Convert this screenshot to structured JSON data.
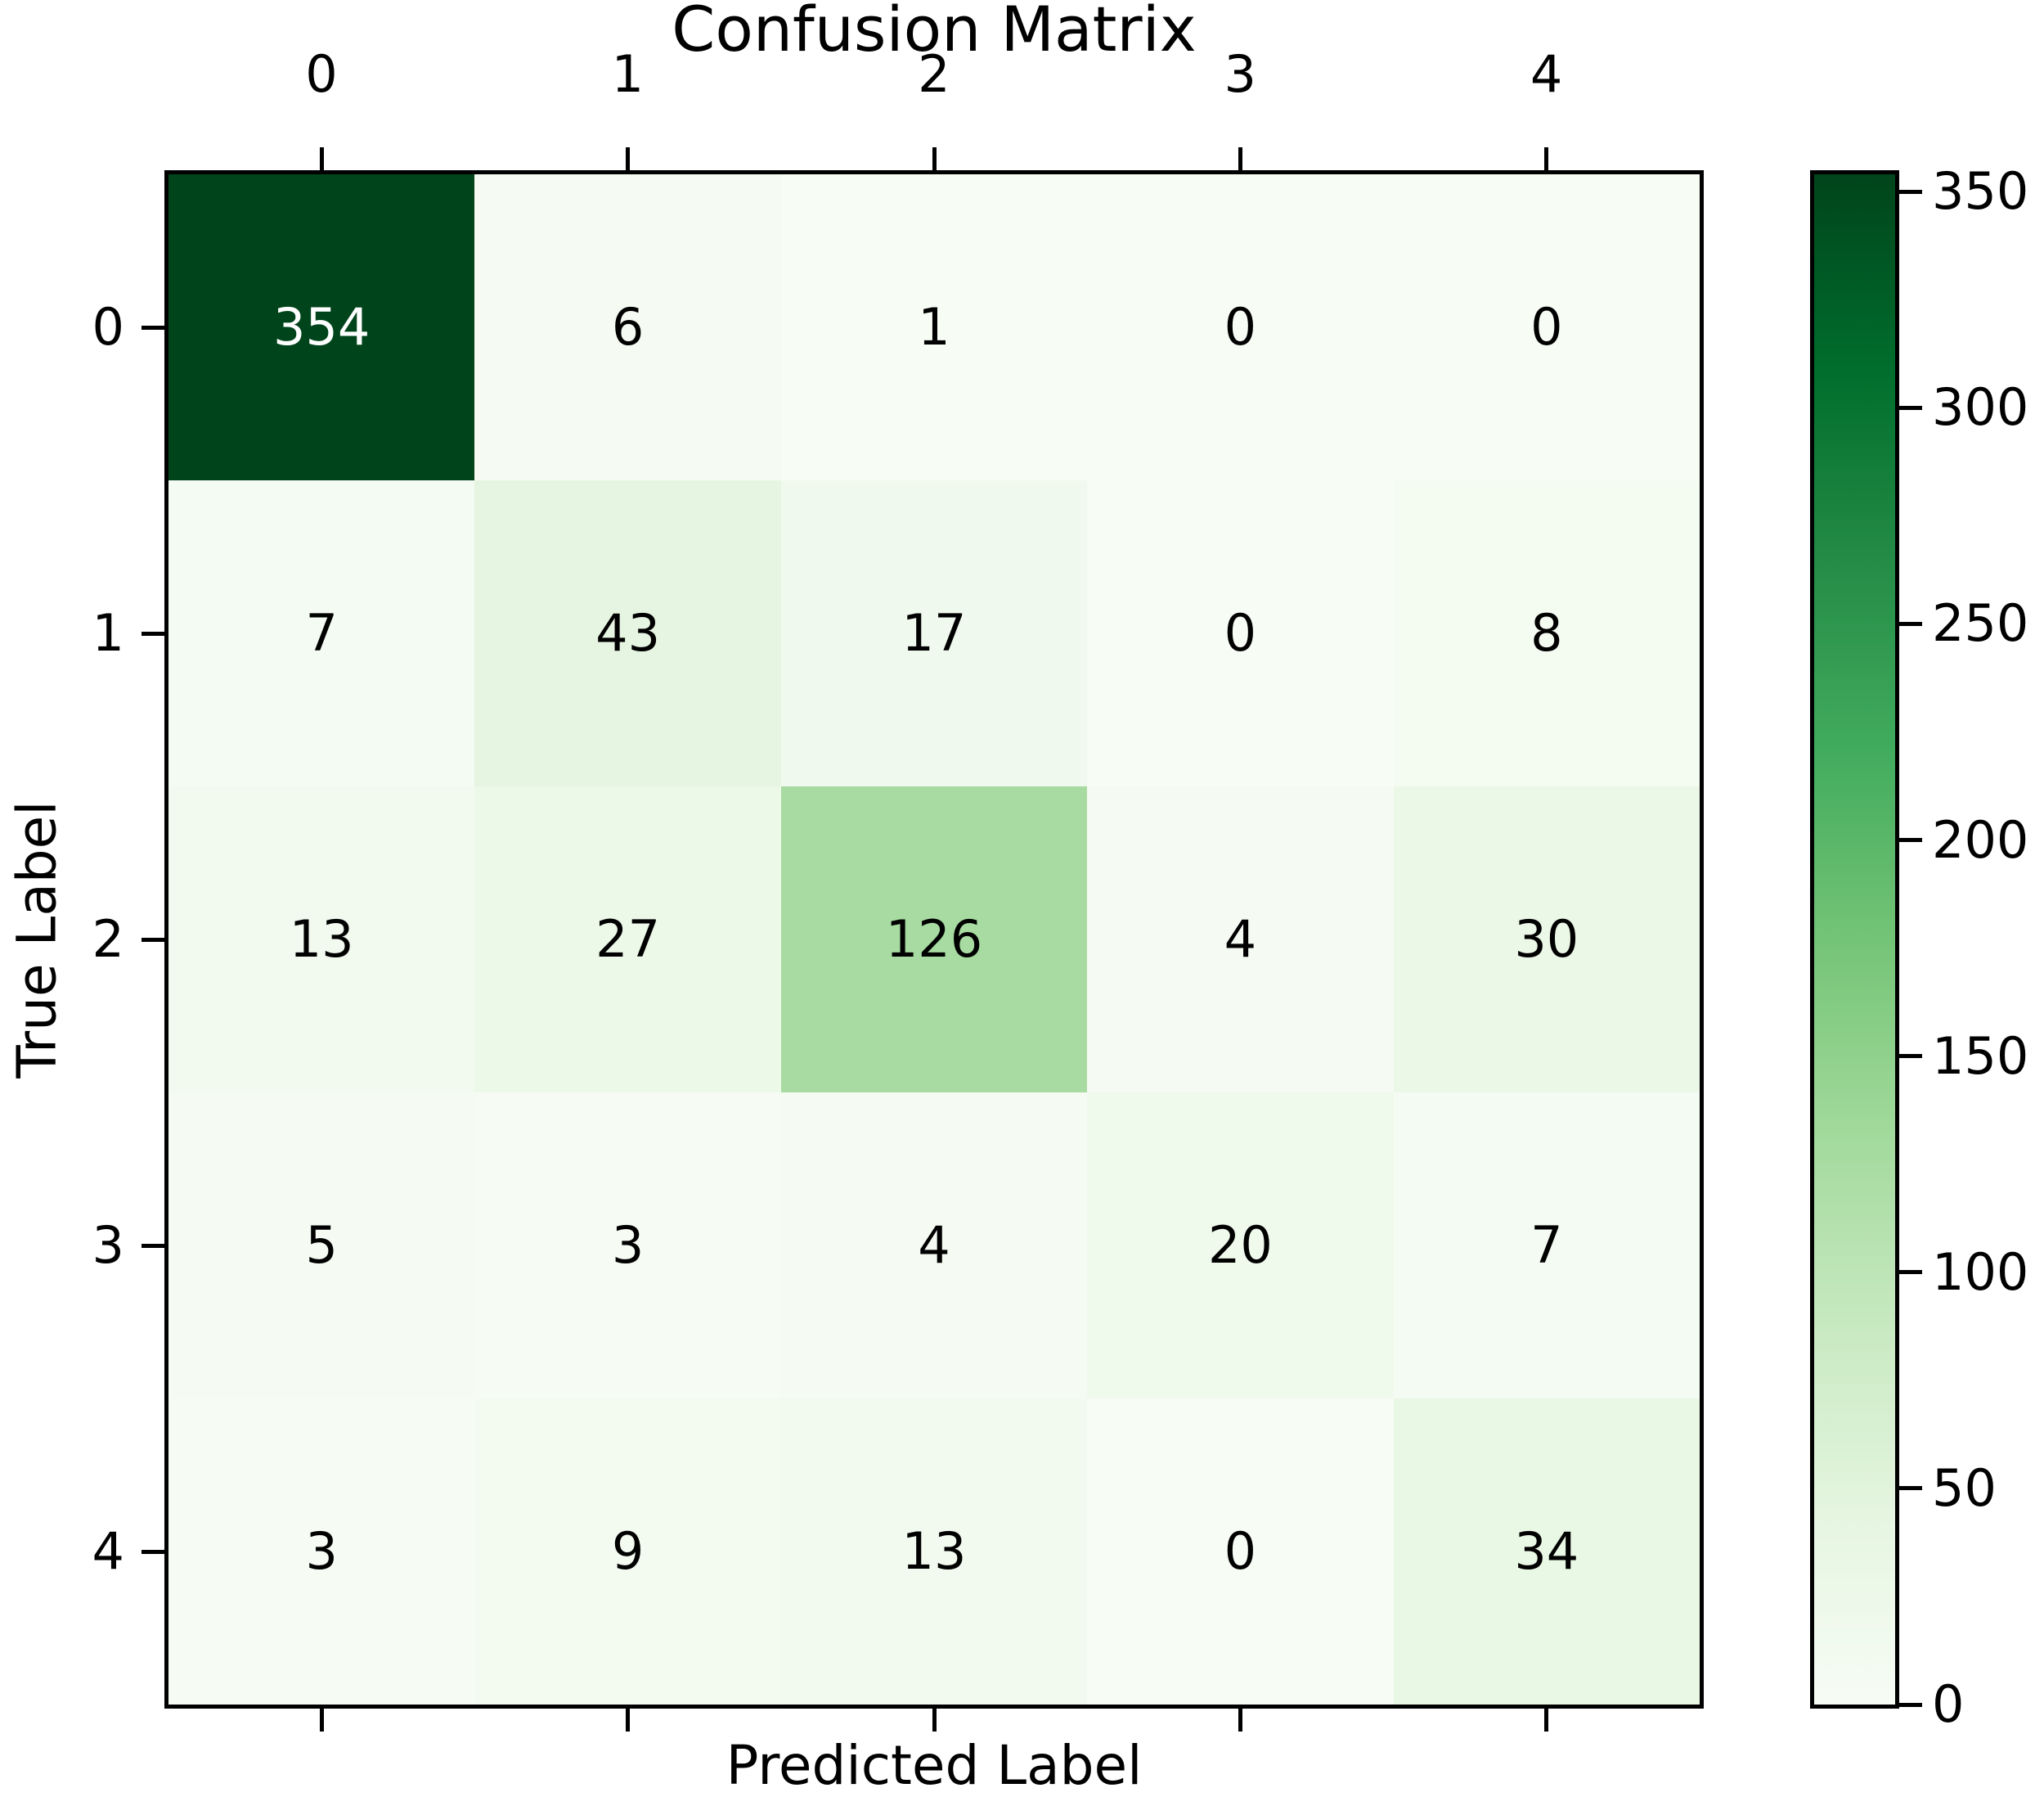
{
  "title": "Confusion Matrix",
  "x_axis_label": "Predicted Label",
  "y_axis_label": "True Label",
  "chart_data": {
    "type": "heatmap",
    "title": "Confusion Matrix",
    "xlabel": "Predicted Label",
    "ylabel": "True Label",
    "x_tick_labels": [
      "0",
      "1",
      "2",
      "3",
      "4"
    ],
    "y_tick_labels": [
      "0",
      "1",
      "2",
      "3",
      "4"
    ],
    "matrix": [
      [
        354,
        6,
        1,
        0,
        0
      ],
      [
        7,
        43,
        17,
        0,
        8
      ],
      [
        13,
        27,
        126,
        4,
        30
      ],
      [
        5,
        3,
        4,
        20,
        7
      ],
      [
        3,
        9,
        13,
        0,
        34
      ]
    ],
    "vmin": 0,
    "vmax": 354,
    "colormap": "Greens",
    "colorbar_ticks": [
      0,
      50,
      100,
      150,
      200,
      250,
      300,
      350
    ],
    "colorbar_position": "right",
    "grid": false,
    "x_ticks_position": "top-and-bottom",
    "y_ticks_position": "left"
  },
  "colors": {
    "background": "#ffffff",
    "axis": "#000000",
    "text_on_dark_cell": "#ffffff",
    "text_on_light_cell": "#000000",
    "colormap_stops": [
      "#f7fcf5",
      "#e5f5e0",
      "#c7e9c0",
      "#a1d99b",
      "#74c476",
      "#41ab5d",
      "#238b45",
      "#006d2c",
      "#00441b"
    ]
  }
}
